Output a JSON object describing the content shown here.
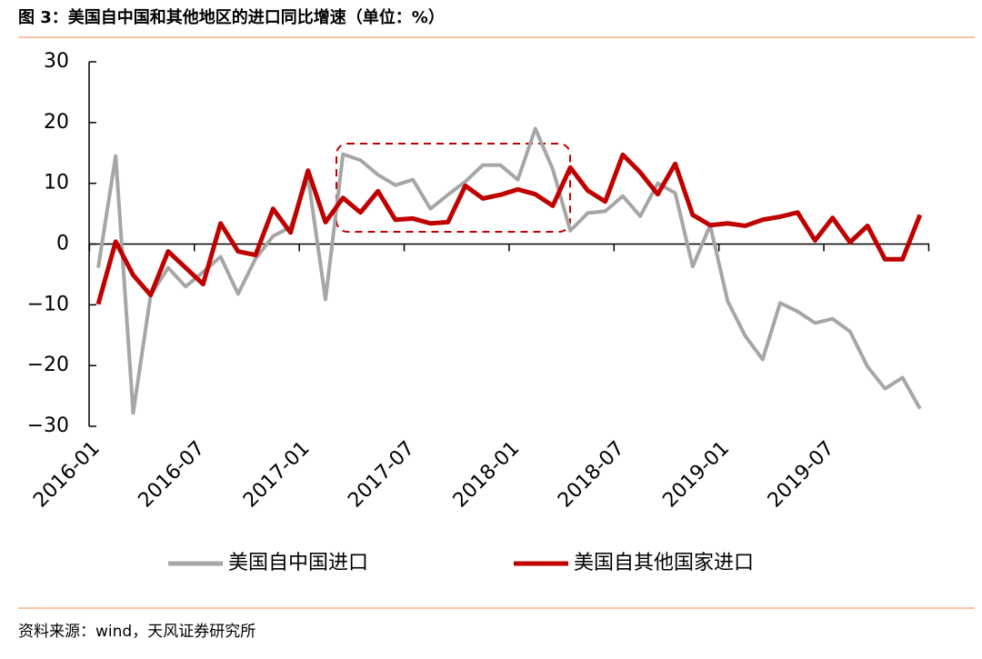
{
  "chart_data": {
    "type": "line",
    "title": "图 3：美国自中国和其他地区的进口同比增速（单位：%）",
    "source": "资料来源：wind，天风证券研究所",
    "categories": [
      "2016-01",
      null,
      null,
      null,
      null,
      null,
      "2016-07",
      null,
      null,
      null,
      null,
      null,
      "2017-01",
      null,
      null,
      null,
      null,
      null,
      "2017-07",
      null,
      null,
      null,
      null,
      null,
      "2018-01",
      null,
      null,
      null,
      null,
      null,
      "2018-07",
      null,
      null,
      null,
      null,
      null,
      "2019-01",
      null,
      null,
      null,
      null,
      null,
      "2019-07",
      null,
      null,
      null,
      null,
      null
    ],
    "series": [
      {
        "name": "美国自中国进口",
        "color": "#a6a6a6",
        "values": [
          -3.9,
          14.5,
          -27.8,
          -8.4,
          -3.9,
          -7,
          -4.6,
          -2.1,
          -8.2,
          -2.4,
          1.3,
          2.8,
          11,
          -9.1,
          14.8,
          13.8,
          11.4,
          9.7,
          10.6,
          5.8,
          8.1,
          10.3,
          13,
          13,
          10.6,
          19,
          12.3,
          2.2,
          5.1,
          5.4,
          7.9,
          4.6,
          10,
          8.4,
          -3.7,
          3.1,
          -9.4,
          -15.1,
          -19,
          -9.7,
          -11.1,
          -13,
          -12.3,
          -14.4,
          -20.2,
          -23.8,
          -22,
          -27.1
        ]
      },
      {
        "name": "美国自其他国家进口",
        "color": "#c00000",
        "values": [
          -9.9,
          0.4,
          -5.1,
          -8.4,
          -1.2,
          -3.9,
          -6.6,
          3.4,
          -1.2,
          -1.8,
          5.8,
          1.9,
          12.1,
          3.6,
          7.6,
          5.2,
          8.7,
          4,
          4.2,
          3.4,
          3.6,
          9.6,
          7.5,
          8.1,
          9,
          8.2,
          6.3,
          12.6,
          8.8,
          7,
          14.7,
          11.8,
          8.2,
          13.2,
          4.8,
          3.1,
          3.4,
          3,
          4,
          4.5,
          5.2,
          0.6,
          4.3,
          0.3,
          3,
          -2.5,
          -2.5,
          4.8
        ]
      }
    ],
    "ylim": [
      -30,
      30
    ],
    "yticks": [
      {
        "value": -30,
        "label": "−30"
      },
      {
        "value": -20,
        "label": "−20"
      },
      {
        "value": -10,
        "label": "−10"
      },
      0,
      10,
      20,
      30
    ]
  }
}
